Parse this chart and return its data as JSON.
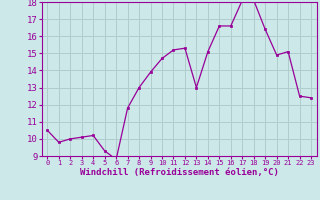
{
  "x": [
    0,
    1,
    2,
    3,
    4,
    5,
    6,
    7,
    8,
    9,
    10,
    11,
    12,
    13,
    14,
    15,
    16,
    17,
    18,
    19,
    20,
    21,
    22,
    23
  ],
  "y": [
    10.5,
    9.8,
    10.0,
    10.1,
    10.2,
    9.3,
    8.8,
    11.8,
    13.0,
    13.9,
    14.7,
    15.2,
    15.3,
    13.0,
    15.1,
    16.6,
    16.6,
    18.1,
    18.1,
    16.4,
    14.9,
    15.1,
    12.5,
    12.4
  ],
  "line_color": "#990099",
  "marker": "s",
  "marker_size": 2.0,
  "bg_color": "#cce8e8",
  "grid_color": "#b0cccc",
  "ylim": [
    9,
    18
  ],
  "yticks": [
    9,
    10,
    11,
    12,
    13,
    14,
    15,
    16,
    17,
    18
  ],
  "xlabel": "Windchill (Refroidissement éolien,°C)",
  "xlabel_color": "#990099",
  "tick_color": "#990099",
  "axis_color": "#990099",
  "xtick_fontsize": 5.0,
  "ytick_fontsize": 6.5
}
